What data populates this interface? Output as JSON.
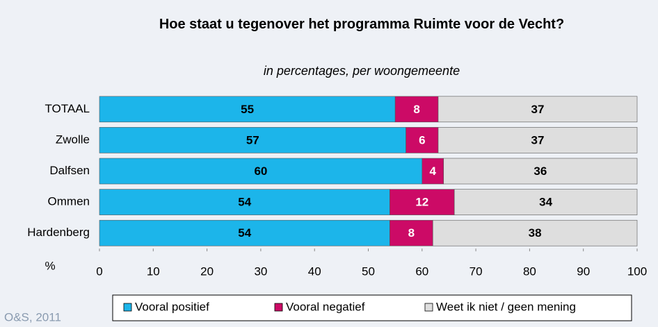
{
  "chart_data": {
    "type": "stacked-bar-horizontal",
    "title": "Hoe staat u tegenover het programma Ruimte voor de Vecht?",
    "subtitle": "in percentages, per woongemeente",
    "categories": [
      "TOTAAL",
      "Zwolle",
      "Dalfsen",
      "Ommen",
      "Hardenberg"
    ],
    "series": [
      {
        "name": "Vooral positief",
        "color": "#1cb5ea",
        "label_color": "#000000",
        "values": [
          55,
          57,
          60,
          54,
          54
        ]
      },
      {
        "name": "Vooral negatief",
        "color": "#cc0a66",
        "label_color": "#ffffff",
        "values": [
          8,
          6,
          4,
          12,
          8
        ]
      },
      {
        "name": "Weet ik niet / geen mening",
        "color": "#dedede",
        "label_color": "#000000",
        "values": [
          37,
          37,
          36,
          34,
          38
        ]
      }
    ],
    "xlabel": "%",
    "xlim": [
      0,
      100
    ],
    "xticks": [
      0,
      10,
      20,
      30,
      40,
      50,
      60,
      70,
      80,
      90,
      100
    ],
    "source": "O&S, 2011"
  }
}
